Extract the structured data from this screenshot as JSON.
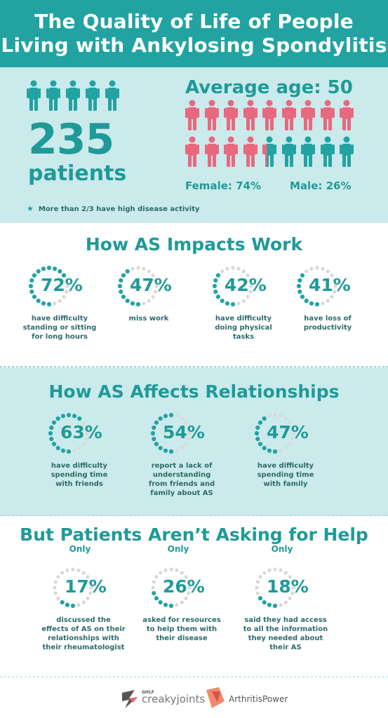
{
  "header": {
    "title_line1": "The Quality of Life of People",
    "title_line2": "Living with Ankylosing Spondylitis"
  },
  "colors": {
    "teal": "#22a3a2",
    "light_teal_bg": "#cbeaeb",
    "pink": "#e8687e",
    "dot_grey": "#d9d9d9"
  },
  "stats": {
    "patients_number": "235",
    "patients_label": "patients",
    "average_age": "Average age: 50",
    "female": "Female: 74%",
    "male": "Male: 26%",
    "female_fraction": 0.74,
    "note": "More than 2/3 have high disease activity"
  },
  "work": {
    "title": "How AS Impacts Work",
    "items": [
      {
        "pct": "72%",
        "value": 72,
        "desc": [
          "have difficulty",
          "standing or sitting",
          "for long hours"
        ]
      },
      {
        "pct": "47%",
        "value": 47,
        "desc": [
          "miss work"
        ]
      },
      {
        "pct": "42%",
        "value": 42,
        "desc": [
          "have difficulty",
          "doing physical",
          "tasks"
        ]
      },
      {
        "pct": "41%",
        "value": 41,
        "desc": [
          "have loss of",
          "productivity"
        ]
      }
    ]
  },
  "relationships": {
    "title": "How AS Affects Relationships",
    "items": [
      {
        "pct": "63%",
        "value": 63,
        "desc": [
          "have difficulty",
          "spending time",
          "with friends"
        ]
      },
      {
        "pct": "54%",
        "value": 54,
        "desc": [
          "report a lack of",
          "understanding",
          "from friends and",
          "family about AS"
        ]
      },
      {
        "pct": "47%",
        "value": 47,
        "desc": [
          "have difficulty",
          "spending time",
          "with family"
        ]
      }
    ]
  },
  "help": {
    "title": "But Patients Aren’t Asking for Help",
    "only_label": "Only",
    "items": [
      {
        "pct": "17%",
        "value": 17,
        "desc": [
          "discussed the",
          "effects of AS on their",
          "relationships with",
          "their rheumatologist"
        ]
      },
      {
        "pct": "26%",
        "value": 26,
        "desc": [
          "asked for resources",
          "to help them with",
          "their disease"
        ]
      },
      {
        "pct": "18%",
        "value": 18,
        "desc": [
          "said they had access",
          "to all the information",
          "they needed about",
          "their AS"
        ]
      }
    ]
  },
  "footer": {
    "logo1_small": "GHLF",
    "logo1_name": "creakyjoints",
    "logo2_name": "ArthritisPower"
  }
}
